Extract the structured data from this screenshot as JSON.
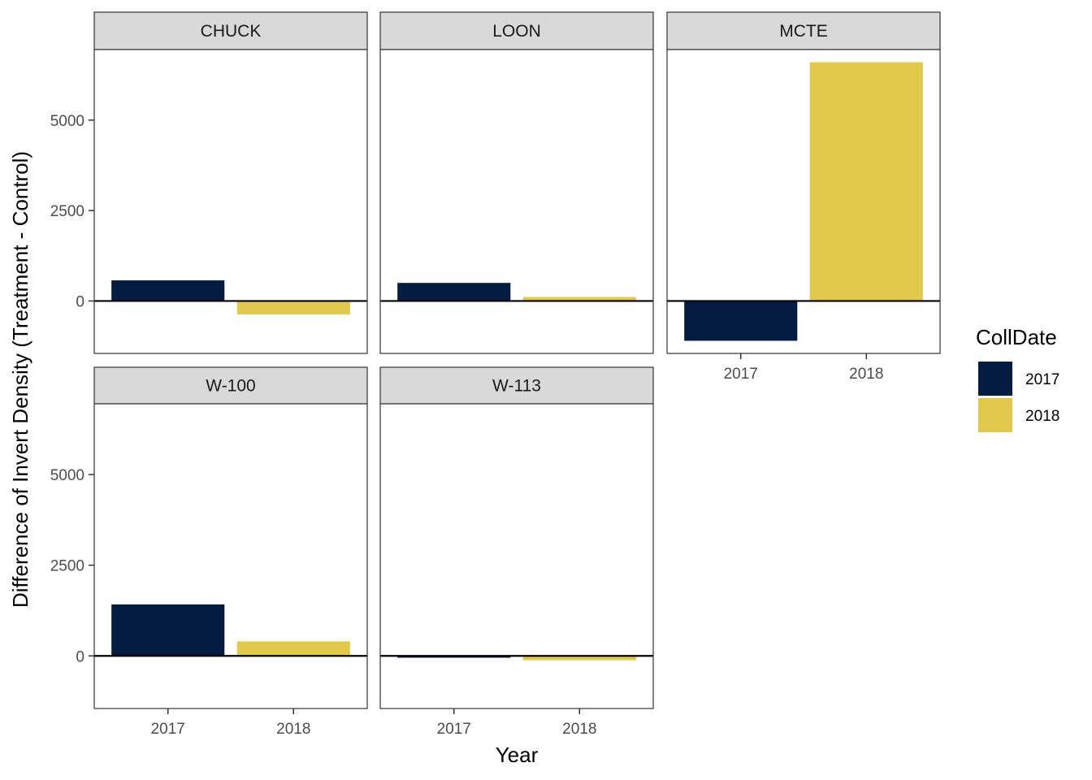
{
  "chart_data": {
    "type": "bar",
    "facet_layout": "3 columns, 2 rows",
    "shared_y_axis": true,
    "xlabel": "Year",
    "ylabel": "Difference of Invert Density (Treatment - Control)",
    "ylim": [
      -1450,
      6950
    ],
    "y_ticks": [
      0,
      2500,
      5000
    ],
    "y_tick_labels": [
      "0",
      "2500",
      "5000"
    ],
    "categories": [
      "2017",
      "2018"
    ],
    "reference_line": 0,
    "grid": false,
    "legend": {
      "title": "CollDate",
      "position": "right",
      "entries": [
        {
          "label": "2017",
          "color": "#041c42"
        },
        {
          "label": "2018",
          "color": "#e1c94a"
        }
      ]
    },
    "panels": [
      {
        "title": "CHUCK",
        "values": [
          570,
          -370
        ]
      },
      {
        "title": "LOON",
        "values": [
          500,
          110
        ]
      },
      {
        "title": "MCTE",
        "values": [
          -1100,
          6600
        ]
      },
      {
        "title": "W-100",
        "values": [
          1420,
          400
        ]
      },
      {
        "title": "W-113",
        "values": [
          -50,
          -120
        ]
      }
    ]
  }
}
